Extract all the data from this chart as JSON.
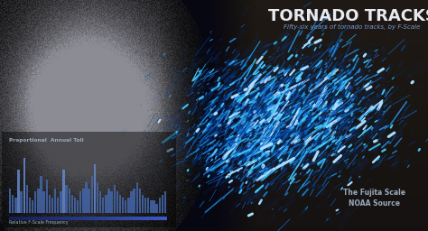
{
  "title": "TORNADO TRACKS",
  "subtitle": "Fifty-six years of tornado tracks, by F-Scale",
  "bg_color": "#0a0a10",
  "title_color": "#e8e8f0",
  "subtitle_color": "#7799cc",
  "chart_title": "Proportional  Annual Toll",
  "chart_freq_label": "Relative F-Scale Frequency",
  "fujita_label": "The Fujita Scale",
  "noaa_label": "NOAA Source",
  "label_color": "#99aabb",
  "bar_color": "#4466aa",
  "bar_bright": "#6688cc",
  "freq_bar_color": "#334477",
  "annual_toll_bars": [
    8,
    6,
    5,
    14,
    7,
    18,
    9,
    5,
    4,
    7,
    8,
    12,
    7,
    11,
    6,
    5,
    8,
    5,
    7,
    14,
    9,
    8,
    6,
    5,
    4,
    7,
    8,
    10,
    8,
    12,
    16,
    10,
    7,
    5,
    6,
    8,
    7,
    9,
    7,
    6,
    5,
    4,
    5,
    7,
    8,
    10,
    8,
    6,
    5,
    5,
    4,
    4,
    3,
    5,
    6,
    7
  ],
  "num_tracks": 5000,
  "seed": 42,
  "terrain_seed": 7
}
